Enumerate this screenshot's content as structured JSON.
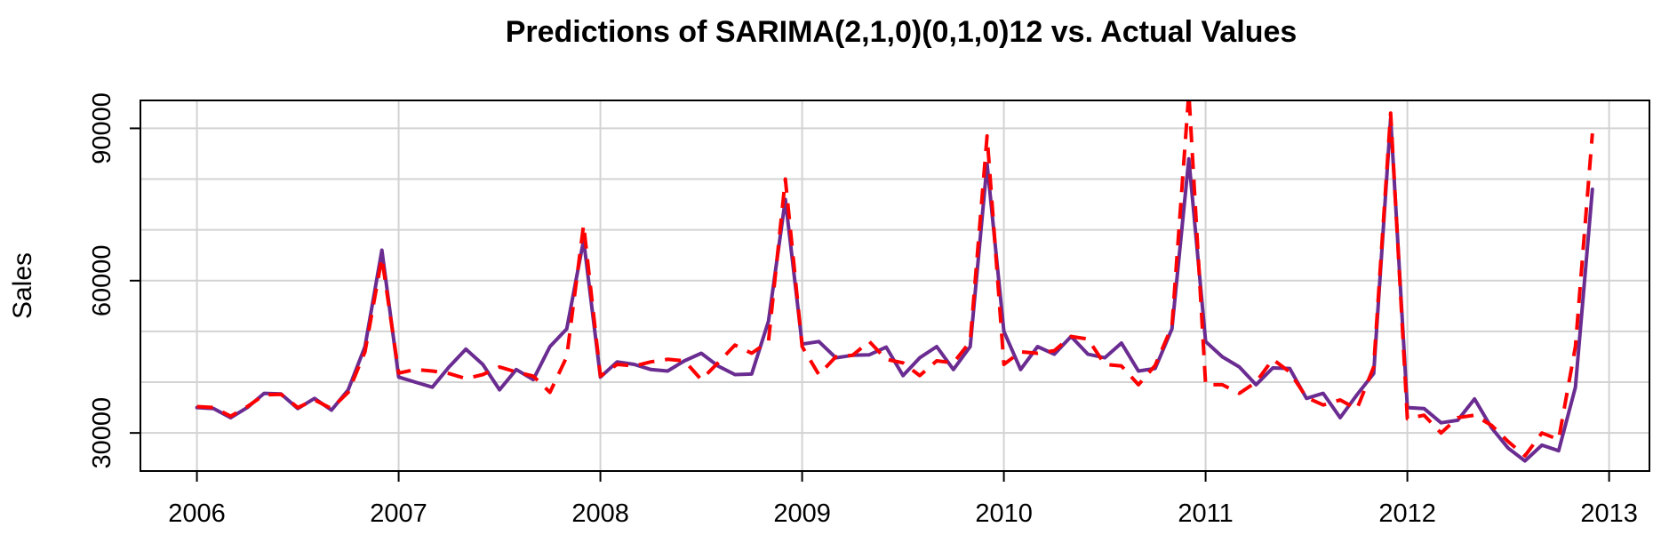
{
  "chart_data": {
    "type": "line",
    "title": "Predictions of SARIMA(2,1,0)(0,1,0)12 vs. Actual Values",
    "xlabel": "",
    "ylabel": "Sales",
    "x_ticks": [
      "2006",
      "2007",
      "2008",
      "2009",
      "2010",
      "2011",
      "2012",
      "2013"
    ],
    "y_ticks": [
      "30000",
      "60000",
      "90000"
    ],
    "xlim": [
      2005.72,
      2013.2
    ],
    "ylim": [
      22500,
      95500
    ],
    "grid": true,
    "legend": "none",
    "x": [
      2006.0,
      2006.083,
      2006.167,
      2006.25,
      2006.333,
      2006.417,
      2006.5,
      2006.583,
      2006.667,
      2006.75,
      2006.833,
      2006.917,
      2007.0,
      2007.083,
      2007.167,
      2007.25,
      2007.333,
      2007.417,
      2007.5,
      2007.583,
      2007.667,
      2007.75,
      2007.833,
      2007.917,
      2008.0,
      2008.083,
      2008.167,
      2008.25,
      2008.333,
      2008.417,
      2008.5,
      2008.583,
      2008.667,
      2008.75,
      2008.833,
      2008.917,
      2009.0,
      2009.083,
      2009.167,
      2009.25,
      2009.333,
      2009.417,
      2009.5,
      2009.583,
      2009.667,
      2009.75,
      2009.833,
      2009.917,
      2010.0,
      2010.083,
      2010.167,
      2010.25,
      2010.333,
      2010.417,
      2010.5,
      2010.583,
      2010.667,
      2010.75,
      2010.833,
      2010.917,
      2011.0,
      2011.083,
      2011.167,
      2011.25,
      2011.333,
      2011.417,
      2011.5,
      2011.583,
      2011.667,
      2011.75,
      2011.833,
      2011.917,
      2012.0,
      2012.083,
      2012.167,
      2012.25,
      2012.333,
      2012.417,
      2012.5,
      2012.583,
      2012.667,
      2012.75,
      2012.833,
      2012.917
    ],
    "series": [
      {
        "color": "#6a2c91",
        "dash": "solid",
        "values": [
          35000,
          34800,
          33000,
          35000,
          37800,
          37700,
          34800,
          36800,
          34500,
          38500,
          47000,
          66000,
          41000,
          40000,
          39000,
          43000,
          46500,
          43500,
          38500,
          42500,
          40500,
          47000,
          50500,
          68000,
          41000,
          44000,
          43500,
          42500,
          42200,
          44200,
          45700,
          43200,
          41500,
          41600,
          52000,
          76000,
          47500,
          48000,
          44800,
          45300,
          45400,
          46900,
          41300,
          44800,
          47000,
          42500,
          47000,
          83000,
          50000,
          42500,
          47000,
          45500,
          49000,
          45500,
          44800,
          47700,
          42200,
          42700,
          50500,
          84000,
          48000,
          45000,
          43000,
          39500,
          42800,
          42700,
          36800,
          37800,
          33000,
          37500,
          41700,
          92000,
          35000,
          34800,
          32000,
          32500,
          36700,
          31000,
          27000,
          24500,
          27600,
          26500,
          39000,
          78000
        ]
      },
      {
        "color": "#ff0000",
        "dash": "dashed",
        "values": [
          35200,
          35000,
          33300,
          35200,
          37500,
          37600,
          35000,
          36500,
          34800,
          38000,
          46000,
          64500,
          41800,
          42500,
          42200,
          41700,
          40700,
          41500,
          43000,
          42000,
          41200,
          38000,
          45000,
          71000,
          41200,
          43500,
          43200,
          44000,
          44500,
          44200,
          40500,
          43800,
          47300,
          45700,
          48000,
          80000,
          47000,
          41500,
          45000,
          45300,
          48000,
          44500,
          43800,
          41300,
          44200,
          43800,
          48000,
          88500,
          43500,
          46000,
          45700,
          46200,
          49000,
          48500,
          43500,
          43200,
          39500,
          43300,
          51000,
          97000,
          39500,
          39500,
          37800,
          40000,
          44500,
          42000,
          37000,
          35500,
          36500,
          34700,
          43000,
          93000,
          32800,
          33500,
          30000,
          33000,
          33500,
          31500,
          28300,
          25500,
          30000,
          28700,
          47000,
          89000
        ]
      }
    ]
  }
}
